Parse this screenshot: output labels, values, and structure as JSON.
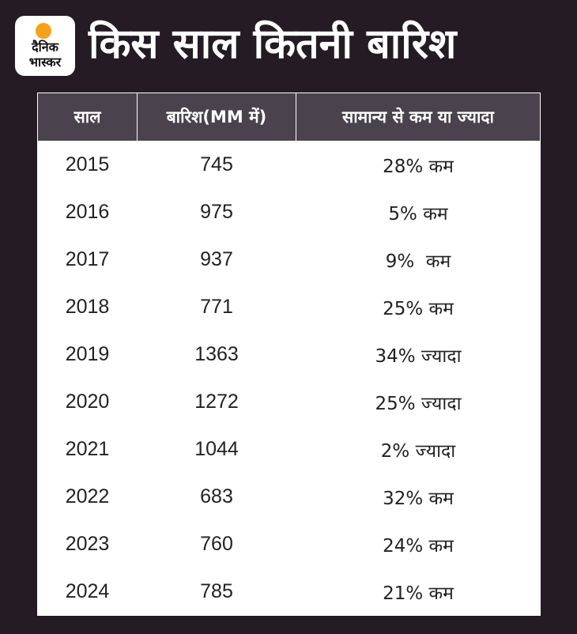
{
  "header": {
    "logo_line1": "दैनिक",
    "logo_line2": "भास्कर",
    "title": "किस साल कितनी बारिश"
  },
  "table": {
    "columns": [
      "साल",
      "बारिश(MM में)",
      "सामान्य से कम या ज्यादा"
    ],
    "rows": [
      {
        "year": "2015",
        "rainfall": "745",
        "deviation": "28% कम"
      },
      {
        "year": "2016",
        "rainfall": "975",
        "deviation": "5% कम"
      },
      {
        "year": "2017",
        "rainfall": "937",
        "deviation": "9%  कम"
      },
      {
        "year": "2018",
        "rainfall": "771",
        "deviation": "25% कम"
      },
      {
        "year": "2019",
        "rainfall": "1363",
        "deviation": "34% ज्यादा"
      },
      {
        "year": "2020",
        "rainfall": "1272",
        "deviation": "25% ज्यादा"
      },
      {
        "year": "2021",
        "rainfall": "1044",
        "deviation": "2% ज्यादा"
      },
      {
        "year": "2022",
        "rainfall": "683",
        "deviation": "32% कम"
      },
      {
        "year": "2023",
        "rainfall": "760",
        "deviation": "24% कम"
      },
      {
        "year": "2024",
        "rainfall": "785",
        "deviation": "21% कम"
      }
    ]
  },
  "colors": {
    "background": "#251b24",
    "header_row": "#4a424c",
    "logo_sun": "#f7a11b"
  }
}
